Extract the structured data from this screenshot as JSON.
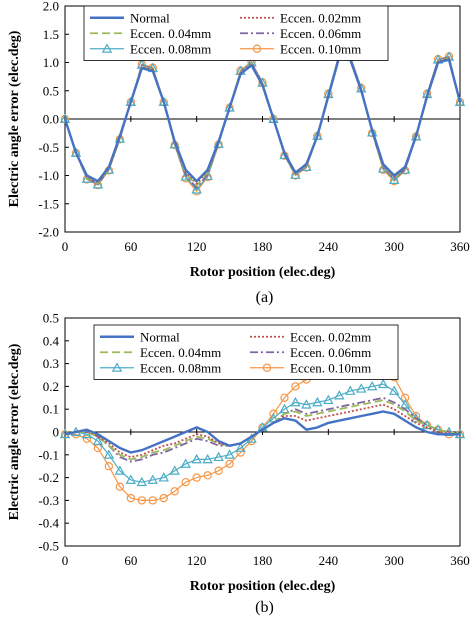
{
  "chart_data": [
    {
      "type": "line",
      "caption": "(a)",
      "xlabel": "Rotor position (elec.deg)",
      "ylabel": "Electric angle error (elec.deg)",
      "xlim": [
        0,
        360
      ],
      "ylim": [
        -2.0,
        2.0
      ],
      "xticks": [
        0,
        60,
        120,
        180,
        240,
        300,
        360
      ],
      "xtick_labels": [
        "0",
        "60",
        "120",
        "180",
        "240",
        "300",
        "360"
      ],
      "yticks": [
        -2.0,
        -1.5,
        -1.0,
        -0.5,
        0.0,
        0.5,
        1.0,
        1.5,
        2.0
      ],
      "ytick_labels": [
        "-2.0",
        "-1.5",
        "-1.0",
        "-0.5",
        "0.0",
        "0.5",
        "1.0",
        "1.5",
        "2.0"
      ],
      "grid": false,
      "legend_position": "top",
      "x": [
        0,
        10,
        20,
        30,
        40,
        50,
        60,
        70,
        80,
        90,
        100,
        110,
        120,
        130,
        140,
        150,
        160,
        170,
        180,
        190,
        200,
        210,
        220,
        230,
        240,
        250,
        260,
        270,
        280,
        290,
        300,
        310,
        320,
        330,
        340,
        350,
        360
      ],
      "series": [
        {
          "name": "Normal",
          "values": [
            0.0,
            -0.6,
            -1.0,
            -1.1,
            -0.85,
            -0.3,
            0.3,
            0.9,
            0.85,
            0.3,
            -0.4,
            -0.9,
            -1.1,
            -0.9,
            -0.4,
            0.2,
            0.8,
            0.95,
            0.6,
            0.0,
            -0.6,
            -0.95,
            -0.8,
            -0.3,
            0.4,
            1.1,
            1.05,
            0.5,
            -0.2,
            -0.8,
            -1.0,
            -0.85,
            -0.3,
            0.4,
            1.0,
            1.05,
            0.3
          ]
        },
        {
          "name": "Eccen. 0.02mm",
          "values": [
            0.0,
            -0.6,
            -1.02,
            -1.12,
            -0.87,
            -0.32,
            0.3,
            0.92,
            0.87,
            0.3,
            -0.42,
            -0.93,
            -1.14,
            -0.92,
            -0.41,
            0.2,
            0.82,
            0.97,
            0.61,
            0.0,
            -0.61,
            -0.96,
            -0.82,
            -0.3,
            0.41,
            1.12,
            1.07,
            0.51,
            -0.21,
            -0.82,
            -1.02,
            -0.87,
            -0.31,
            0.41,
            1.02,
            1.07,
            0.3
          ]
        },
        {
          "name": "Eccen. 0.04mm",
          "values": [
            0.0,
            -0.6,
            -1.04,
            -1.14,
            -0.88,
            -0.33,
            0.3,
            0.93,
            0.88,
            0.3,
            -0.43,
            -0.96,
            -1.18,
            -0.95,
            -0.42,
            0.2,
            0.83,
            0.98,
            0.62,
            0.0,
            -0.62,
            -0.97,
            -0.83,
            -0.3,
            0.42,
            1.13,
            1.08,
            0.52,
            -0.22,
            -0.84,
            -1.04,
            -0.88,
            -0.31,
            0.42,
            1.03,
            1.08,
            0.3
          ]
        },
        {
          "name": "Eccen. 0.06mm",
          "values": [
            0.0,
            -0.6,
            -1.05,
            -1.15,
            -0.89,
            -0.34,
            0.3,
            0.95,
            0.89,
            0.3,
            -0.44,
            -0.99,
            -1.22,
            -0.98,
            -0.43,
            0.2,
            0.84,
            0.99,
            0.63,
            0.0,
            -0.63,
            -0.98,
            -0.84,
            -0.3,
            0.43,
            1.14,
            1.09,
            0.53,
            -0.23,
            -0.86,
            -1.06,
            -0.89,
            -0.31,
            0.43,
            1.04,
            1.09,
            0.3
          ]
        },
        {
          "name": "Eccen. 0.08mm",
          "values": [
            0.0,
            -0.6,
            -1.06,
            -1.16,
            -0.9,
            -0.35,
            0.3,
            0.96,
            0.9,
            0.3,
            -0.45,
            -1.02,
            -1.25,
            -1.01,
            -0.44,
            0.2,
            0.85,
            1.0,
            0.64,
            0.0,
            -0.64,
            -0.99,
            -0.85,
            -0.3,
            0.44,
            1.15,
            1.1,
            0.54,
            -0.24,
            -0.88,
            -1.08,
            -0.9,
            -0.31,
            0.44,
            1.05,
            1.1,
            0.3
          ]
        },
        {
          "name": "Eccen. 0.10mm",
          "values": [
            0.0,
            -0.6,
            -1.07,
            -1.17,
            -0.91,
            -0.36,
            0.3,
            0.97,
            0.91,
            0.3,
            -0.46,
            -1.05,
            -1.28,
            -1.03,
            -0.45,
            0.2,
            0.86,
            1.01,
            0.65,
            0.0,
            -0.65,
            -1.0,
            -0.86,
            -0.3,
            0.45,
            1.16,
            1.11,
            0.55,
            -0.25,
            -0.9,
            -1.1,
            -0.91,
            -0.31,
            0.45,
            1.06,
            1.11,
            0.3
          ]
        }
      ]
    },
    {
      "type": "line",
      "caption": "(b)",
      "xlabel": "Rotor position (elec.deg)",
      "ylabel": "Electric angle error (elec.deg)",
      "xlim": [
        0,
        360
      ],
      "ylim": [
        -0.5,
        0.5
      ],
      "xticks": [
        0,
        60,
        120,
        180,
        240,
        300,
        360
      ],
      "xtick_labels": [
        "0",
        "60",
        "120",
        "180",
        "240",
        "300",
        "360"
      ],
      "yticks": [
        -0.5,
        -0.4,
        -0.3,
        -0.2,
        -0.1,
        0,
        0.1,
        0.2,
        0.3,
        0.4,
        0.5
      ],
      "ytick_labels": [
        "-0.5",
        "-0.4",
        "-0.3",
        "-0.2",
        "-0.1",
        "0",
        "0.1",
        "0.2",
        "0.3",
        "0.4",
        "0.5"
      ],
      "grid": false,
      "legend_position": "top",
      "x": [
        0,
        10,
        20,
        30,
        40,
        50,
        60,
        70,
        80,
        90,
        100,
        110,
        120,
        130,
        140,
        150,
        160,
        170,
        180,
        190,
        200,
        210,
        220,
        230,
        240,
        250,
        260,
        270,
        280,
        290,
        300,
        310,
        320,
        330,
        340,
        350,
        360
      ],
      "series": [
        {
          "name": "Normal",
          "values": [
            -0.01,
            0.0,
            0.01,
            -0.01,
            -0.04,
            -0.07,
            -0.09,
            -0.08,
            -0.06,
            -0.04,
            -0.02,
            0.0,
            0.02,
            0.0,
            -0.04,
            -0.06,
            -0.05,
            -0.02,
            0.01,
            0.04,
            0.06,
            0.05,
            0.01,
            0.02,
            0.04,
            0.05,
            0.06,
            0.07,
            0.08,
            0.09,
            0.08,
            0.05,
            0.02,
            0.0,
            -0.01,
            -0.01,
            -0.01
          ]
        },
        {
          "name": "Eccen. 0.02mm",
          "values": [
            -0.01,
            0.0,
            0.01,
            -0.02,
            -0.05,
            -0.09,
            -0.11,
            -0.1,
            -0.08,
            -0.06,
            -0.05,
            -0.03,
            -0.01,
            -0.02,
            -0.05,
            -0.06,
            -0.05,
            -0.02,
            0.01,
            0.04,
            0.07,
            0.07,
            0.05,
            0.06,
            0.07,
            0.08,
            0.09,
            0.1,
            0.11,
            0.12,
            0.1,
            0.07,
            0.04,
            0.02,
            0.0,
            -0.01,
            -0.01
          ]
        },
        {
          "name": "Eccen. 0.04mm",
          "values": [
            -0.01,
            0.0,
            0.0,
            -0.02,
            -0.06,
            -0.1,
            -0.12,
            -0.11,
            -0.09,
            -0.08,
            -0.06,
            -0.04,
            -0.02,
            -0.03,
            -0.05,
            -0.06,
            -0.05,
            -0.02,
            0.01,
            0.04,
            0.08,
            0.09,
            0.07,
            0.08,
            0.09,
            0.1,
            0.11,
            0.12,
            0.13,
            0.14,
            0.12,
            0.09,
            0.05,
            0.03,
            0.01,
            0.0,
            -0.01
          ]
        },
        {
          "name": "Eccen. 0.06mm",
          "values": [
            -0.01,
            0.0,
            0.0,
            -0.02,
            -0.06,
            -0.11,
            -0.13,
            -0.12,
            -0.1,
            -0.09,
            -0.07,
            -0.05,
            -0.03,
            -0.04,
            -0.06,
            -0.06,
            -0.05,
            -0.02,
            0.01,
            0.04,
            0.08,
            0.1,
            0.08,
            0.09,
            0.1,
            0.11,
            0.12,
            0.13,
            0.14,
            0.15,
            0.13,
            0.1,
            0.06,
            0.03,
            0.01,
            0.0,
            -0.01
          ]
        },
        {
          "name": "Eccen. 0.08mm",
          "values": [
            -0.01,
            0.0,
            -0.01,
            -0.04,
            -0.1,
            -0.17,
            -0.21,
            -0.22,
            -0.21,
            -0.2,
            -0.17,
            -0.14,
            -0.12,
            -0.12,
            -0.11,
            -0.1,
            -0.07,
            -0.03,
            0.02,
            0.06,
            0.1,
            0.13,
            0.12,
            0.13,
            0.14,
            0.16,
            0.18,
            0.19,
            0.2,
            0.21,
            0.18,
            0.12,
            0.06,
            0.03,
            0.01,
            0.0,
            -0.01
          ]
        },
        {
          "name": "Eccen. 0.10mm",
          "values": [
            -0.01,
            -0.01,
            -0.03,
            -0.07,
            -0.15,
            -0.24,
            -0.29,
            -0.3,
            -0.3,
            -0.29,
            -0.26,
            -0.22,
            -0.2,
            -0.19,
            -0.17,
            -0.14,
            -0.09,
            -0.04,
            0.02,
            0.08,
            0.15,
            0.2,
            0.23,
            0.25,
            0.27,
            0.28,
            0.29,
            0.3,
            0.3,
            0.29,
            0.24,
            0.15,
            0.07,
            0.03,
            0.01,
            -0.01,
            -0.01
          ]
        }
      ]
    }
  ],
  "style": {
    "colors": [
      "#4472c4",
      "#c0504d",
      "#9bbb59",
      "#8064a2",
      "#4bacc6",
      "#f79646"
    ],
    "dashes": [
      "",
      "2,2",
      "8,4",
      "8,3,2,3",
      "",
      ""
    ],
    "widths": [
      2.4,
      1.8,
      1.8,
      1.8,
      1.2,
      1.2
    ],
    "markers": [
      "none",
      "none",
      "none",
      "none",
      "triangle",
      "circle"
    ]
  }
}
